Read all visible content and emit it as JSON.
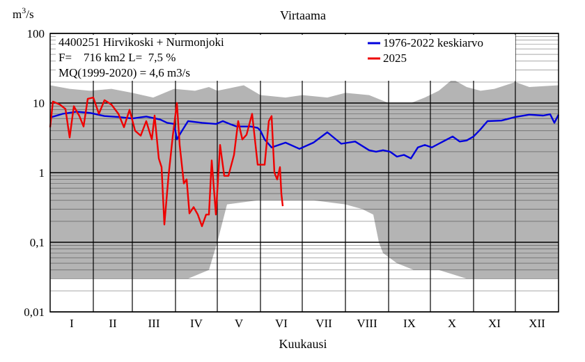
{
  "chart_data": {
    "type": "line",
    "title": "Virtaama",
    "ylabel_base": "m",
    "ylabel_sup": "3",
    "ylabel_tail": "/s",
    "xlabel": "Kuukausi",
    "yscale": "log",
    "ylim": [
      0.01,
      100
    ],
    "xlim": [
      1,
      366
    ],
    "y_ticks": [
      {
        "value": 100,
        "label": "100"
      },
      {
        "value": 10,
        "label": "10"
      },
      {
        "value": 1,
        "label": "1"
      },
      {
        "value": 0.1,
        "label": "0,1"
      },
      {
        "value": 0.01,
        "label": "0,01"
      }
    ],
    "months": [
      "I",
      "II",
      "III",
      "IV",
      "V",
      "VI",
      "VII",
      "VIII",
      "IX",
      "X",
      "XI",
      "XII"
    ],
    "month_start_days": [
      1,
      32,
      60,
      91,
      121,
      152,
      182,
      213,
      244,
      274,
      305,
      335,
      366
    ],
    "info": {
      "line1": "4400251 Hirvikoski + Nurmonjoki",
      "line2": "F=    716 km2 L=  7,5 %",
      "line3": "MQ(1999-2020) = 4,6 m3/s"
    },
    "colors": {
      "mean": "#0000dd",
      "y2025": "#ee0000",
      "envelope": "#b4b4b4"
    },
    "envelope": {
      "name": "historical min-max range",
      "upper": [
        [
          1,
          18
        ],
        [
          15,
          16
        ],
        [
          30,
          15
        ],
        [
          45,
          16
        ],
        [
          60,
          14
        ],
        [
          75,
          12
        ],
        [
          90,
          16
        ],
        [
          105,
          15
        ],
        [
          115,
          17
        ],
        [
          121,
          15
        ],
        [
          140,
          18
        ],
        [
          152,
          13
        ],
        [
          170,
          12
        ],
        [
          182,
          13
        ],
        [
          200,
          12
        ],
        [
          213,
          14
        ],
        [
          230,
          13
        ],
        [
          244,
          10
        ],
        [
          260,
          10
        ],
        [
          270,
          12
        ],
        [
          280,
          15
        ],
        [
          290,
          22
        ],
        [
          300,
          17
        ],
        [
          310,
          15
        ],
        [
          320,
          16
        ],
        [
          335,
          20
        ],
        [
          345,
          17
        ],
        [
          366,
          18
        ]
      ],
      "lower": [
        [
          1,
          0.03
        ],
        [
          20,
          0.03
        ],
        [
          40,
          0.03
        ],
        [
          60,
          0.03
        ],
        [
          80,
          0.03
        ],
        [
          100,
          0.03
        ],
        [
          115,
          0.04
        ],
        [
          121,
          0.1
        ],
        [
          128,
          0.35
        ],
        [
          150,
          0.4
        ],
        [
          170,
          0.4
        ],
        [
          190,
          0.4
        ],
        [
          213,
          0.35
        ],
        [
          225,
          0.3
        ],
        [
          233,
          0.25
        ],
        [
          237,
          0.1
        ],
        [
          240,
          0.07
        ],
        [
          250,
          0.05
        ],
        [
          262,
          0.04
        ],
        [
          280,
          0.04
        ],
        [
          300,
          0.03
        ],
        [
          320,
          0.03
        ],
        [
          335,
          0.03
        ],
        [
          350,
          0.03
        ],
        [
          366,
          0.03
        ]
      ]
    },
    "series": [
      {
        "name": "1976-2022 keskiarvo",
        "key": "mean",
        "points": [
          [
            1,
            6.2
          ],
          [
            10,
            7.0
          ],
          [
            20,
            7.5
          ],
          [
            30,
            7.2
          ],
          [
            40,
            6.5
          ],
          [
            50,
            6.3
          ],
          [
            60,
            6.0
          ],
          [
            70,
            6.4
          ],
          [
            80,
            5.8
          ],
          [
            85,
            5.2
          ],
          [
            90,
            5.0
          ],
          [
            92,
            3.0
          ],
          [
            95,
            3.8
          ],
          [
            100,
            5.5
          ],
          [
            110,
            5.2
          ],
          [
            120,
            5.0
          ],
          [
            125,
            5.5
          ],
          [
            130,
            5.0
          ],
          [
            135,
            4.6
          ],
          [
            140,
            4.6
          ],
          [
            145,
            4.6
          ],
          [
            150,
            4.4
          ],
          [
            152,
            4.0
          ],
          [
            155,
            3.0
          ],
          [
            160,
            2.3
          ],
          [
            170,
            2.7
          ],
          [
            180,
            2.2
          ],
          [
            190,
            2.7
          ],
          [
            200,
            3.8
          ],
          [
            210,
            2.6
          ],
          [
            220,
            2.8
          ],
          [
            230,
            2.1
          ],
          [
            235,
            2.0
          ],
          [
            240,
            2.1
          ],
          [
            245,
            2.0
          ],
          [
            250,
            1.7
          ],
          [
            255,
            1.8
          ],
          [
            260,
            1.6
          ],
          [
            265,
            2.3
          ],
          [
            270,
            2.5
          ],
          [
            275,
            2.3
          ],
          [
            280,
            2.6
          ],
          [
            290,
            3.3
          ],
          [
            295,
            2.8
          ],
          [
            300,
            2.9
          ],
          [
            305,
            3.3
          ],
          [
            310,
            4.2
          ],
          [
            315,
            5.5
          ],
          [
            325,
            5.6
          ],
          [
            335,
            6.3
          ],
          [
            345,
            6.8
          ],
          [
            355,
            6.6
          ],
          [
            360,
            6.9
          ],
          [
            363,
            5.2
          ],
          [
            366,
            6.8
          ]
        ]
      },
      {
        "name": "2025",
        "key": "y2025",
        "points": [
          [
            1,
            4.5
          ],
          [
            3,
            10.5
          ],
          [
            8,
            9.5
          ],
          [
            12,
            8.2
          ],
          [
            15,
            3.2
          ],
          [
            18,
            9.0
          ],
          [
            22,
            6.5
          ],
          [
            25,
            4.6
          ],
          [
            28,
            11.5
          ],
          [
            32,
            12.0
          ],
          [
            36,
            7.0
          ],
          [
            40,
            11.0
          ],
          [
            45,
            9.5
          ],
          [
            50,
            7.0
          ],
          [
            54,
            4.5
          ],
          [
            58,
            8.0
          ],
          [
            62,
            4.0
          ],
          [
            66,
            3.4
          ],
          [
            70,
            5.5
          ],
          [
            74,
            3.0
          ],
          [
            76,
            6.6
          ],
          [
            79,
            1.6
          ],
          [
            81,
            1.2
          ],
          [
            83,
            0.18
          ],
          [
            86,
            0.9
          ],
          [
            89,
            3.3
          ],
          [
            92,
            10.0
          ],
          [
            94,
            2.5
          ],
          [
            97,
            0.7
          ],
          [
            99,
            0.8
          ],
          [
            101,
            0.26
          ],
          [
            104,
            0.32
          ],
          [
            107,
            0.25
          ],
          [
            110,
            0.17
          ],
          [
            113,
            0.25
          ],
          [
            115,
            0.25
          ],
          [
            117,
            1.5
          ],
          [
            120,
            0.25
          ],
          [
            123,
            2.5
          ],
          [
            126,
            0.9
          ],
          [
            129,
            0.9
          ],
          [
            133,
            1.8
          ],
          [
            136,
            5.5
          ],
          [
            139,
            3.0
          ],
          [
            142,
            3.5
          ],
          [
            146,
            7.0
          ],
          [
            150,
            1.3
          ],
          [
            155,
            1.3
          ],
          [
            158,
            5.5
          ],
          [
            160,
            6.5
          ],
          [
            162,
            1.0
          ],
          [
            164,
            0.8
          ],
          [
            166,
            1.2
          ],
          [
            167,
            0.5
          ],
          [
            168,
            0.33
          ]
        ]
      }
    ]
  }
}
